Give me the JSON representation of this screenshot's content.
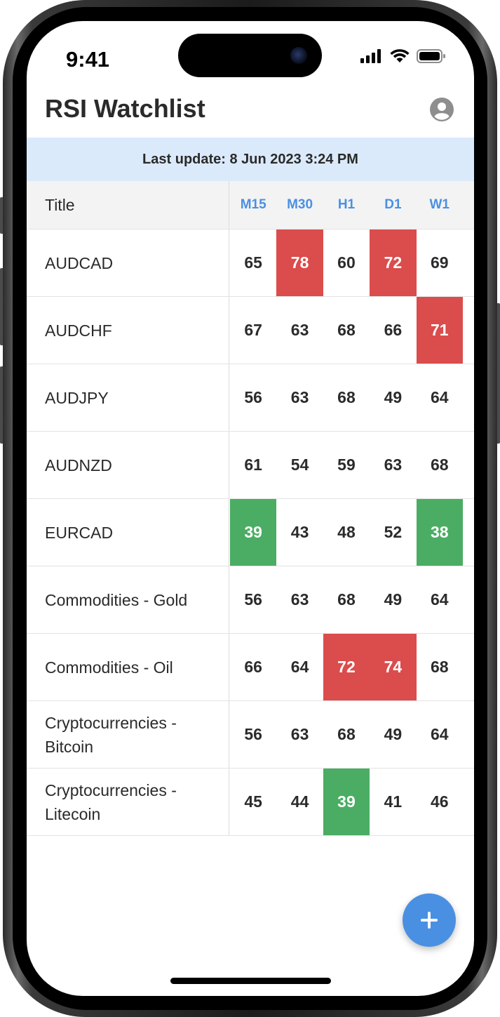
{
  "status_bar": {
    "time": "9:41"
  },
  "header": {
    "title": "RSI Watchlist",
    "profile_icon": "account-circle-icon"
  },
  "banner": {
    "text": "Last update: 8 Jun 2023 3:24 PM"
  },
  "table": {
    "title_header": "Title",
    "timeframes": [
      "M15",
      "M30",
      "H1",
      "D1",
      "W1"
    ],
    "rows": [
      {
        "title": "AUDCAD",
        "values": [
          "65",
          "78",
          "60",
          "72",
          "69"
        ],
        "status": [
          "",
          "over",
          "",
          "over",
          ""
        ]
      },
      {
        "title": "AUDCHF",
        "values": [
          "67",
          "63",
          "68",
          "66",
          "71"
        ],
        "status": [
          "",
          "",
          "",
          "",
          "over"
        ]
      },
      {
        "title": "AUDJPY",
        "values": [
          "56",
          "63",
          "68",
          "49",
          "64"
        ],
        "status": [
          "",
          "",
          "",
          "",
          ""
        ]
      },
      {
        "title": "AUDNZD",
        "values": [
          "61",
          "54",
          "59",
          "63",
          "68"
        ],
        "status": [
          "",
          "",
          "",
          "",
          ""
        ]
      },
      {
        "title": "EURCAD",
        "values": [
          "39",
          "43",
          "48",
          "52",
          "38"
        ],
        "status": [
          "under",
          "",
          "",
          "",
          "under"
        ]
      },
      {
        "title": "Commodities - Gold",
        "values": [
          "56",
          "63",
          "68",
          "49",
          "64"
        ],
        "status": [
          "",
          "",
          "",
          "",
          ""
        ]
      },
      {
        "title": "Commodities - Oil",
        "values": [
          "66",
          "64",
          "72",
          "74",
          "68"
        ],
        "status": [
          "",
          "",
          "over",
          "over",
          ""
        ]
      },
      {
        "title": "Cryptocurrencies - Bitcoin",
        "values": [
          "56",
          "63",
          "68",
          "49",
          "64"
        ],
        "status": [
          "",
          "",
          "",
          "",
          ""
        ]
      },
      {
        "title": "Cryptocurrencies - Litecoin",
        "values": [
          "45",
          "44",
          "39",
          "41",
          "46"
        ],
        "status": [
          "",
          "",
          "under",
          "",
          ""
        ]
      }
    ]
  },
  "colors": {
    "overbought": "#db4c4c",
    "oversold": "#4aad63",
    "accent": "#4a90e2",
    "banner_bg": "#dbeafb"
  },
  "fab": {
    "icon": "plus-icon"
  }
}
